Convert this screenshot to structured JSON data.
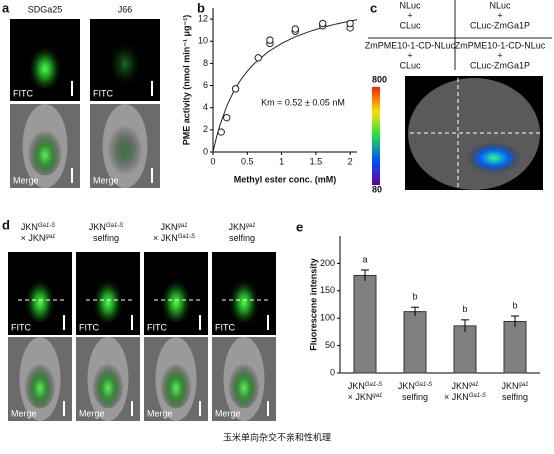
{
  "panels": {
    "a": {
      "label": "a",
      "columns": [
        "SDGa25",
        "J66"
      ],
      "row_labels": [
        "FITC",
        "Merge"
      ]
    },
    "b": {
      "label": "b"
    },
    "c": {
      "label": "c",
      "columns": [
        [
          "NLuc",
          "+",
          "CLuc"
        ],
        [
          "NLuc",
          "+",
          "CLuc-ZmGa1P"
        ]
      ],
      "rows": [
        [
          "ZmPME10-1-CD-NLuc",
          "+",
          "CLuc"
        ],
        [
          "ZmPME10-1-CD-NLuc",
          "+",
          "CLuc-ZmGa1P"
        ]
      ],
      "colorbar": [
        800,
        80
      ]
    },
    "d": {
      "label": "d",
      "headers": [
        [
          [
            "JKN",
            "Ga1-S"
          ],
          [
            "× JKN",
            "ga1"
          ]
        ],
        [
          [
            "JKN",
            "Ga1-S"
          ],
          [
            "selfing"
          ]
        ],
        [
          [
            "JKN",
            "ga1"
          ],
          [
            "× JKN",
            "Ga1-S"
          ]
        ],
        [
          [
            "JKN",
            "ga1"
          ],
          [
            "selfing"
          ]
        ]
      ],
      "row_labels": [
        "FITC",
        "Merge"
      ]
    },
    "e": {
      "label": "e"
    }
  },
  "chart_data": [
    {
      "type": "scatter",
      "x_label": "Methyl ester conc. (mM)",
      "y_label": "PME activity (nmol min⁻¹ μg⁻¹)",
      "annotation": "Km = 0.52 ± 0.05 nM",
      "x": [
        0.12,
        0.2,
        0.33,
        0.66,
        0.83,
        0.83,
        1.2,
        1.2,
        1.6,
        1.6,
        2.0,
        2.0
      ],
      "values": [
        1.8,
        3.1,
        5.7,
        8.5,
        9.8,
        10.1,
        10.9,
        11.1,
        11.4,
        11.6,
        11.2,
        11.6
      ],
      "fit": {
        "x": [
          0,
          0.05,
          0.1,
          0.2,
          0.3,
          0.4,
          0.5,
          0.6,
          0.8,
          1.0,
          1.2,
          1.4,
          1.6,
          1.8,
          2.0,
          2.1
        ],
        "values": [
          0,
          1.31,
          2.4,
          4.14,
          5.45,
          6.48,
          7.3,
          7.98,
          9.03,
          9.8,
          10.4,
          10.86,
          11.25,
          11.56,
          11.83,
          11.94
        ]
      },
      "xlim": [
        0,
        2.1
      ],
      "xticks": [
        0,
        0.5,
        1,
        1.5,
        2
      ],
      "ylim": [
        0,
        13
      ],
      "yticks": [
        0,
        2,
        4,
        6,
        8,
        10,
        12
      ],
      "color": "#222"
    },
    {
      "type": "bar",
      "y_label": "Fluorescene intensity",
      "categories": [
        [
          [
            "JKN",
            "Ga1-S"
          ],
          [
            "× JKN",
            "ga1"
          ]
        ],
        [
          [
            "JKN",
            "Ga1-S"
          ],
          [
            "selfing"
          ]
        ],
        [
          [
            "JKN",
            "ga1"
          ],
          [
            "× JKN",
            "Ga1-S"
          ]
        ],
        [
          [
            "JKN",
            "ga1"
          ],
          [
            "selfing"
          ]
        ]
      ],
      "values": [
        178,
        112,
        86,
        94
      ],
      "errors": [
        10,
        8,
        11,
        10
      ],
      "annotations": [
        "a",
        "b",
        "b",
        "b"
      ],
      "ylim": [
        0,
        250
      ],
      "yticks": [
        0,
        50,
        100,
        150,
        200
      ],
      "color": "#808080"
    }
  ],
  "caption": "玉米单向杂交不亲和性机理"
}
